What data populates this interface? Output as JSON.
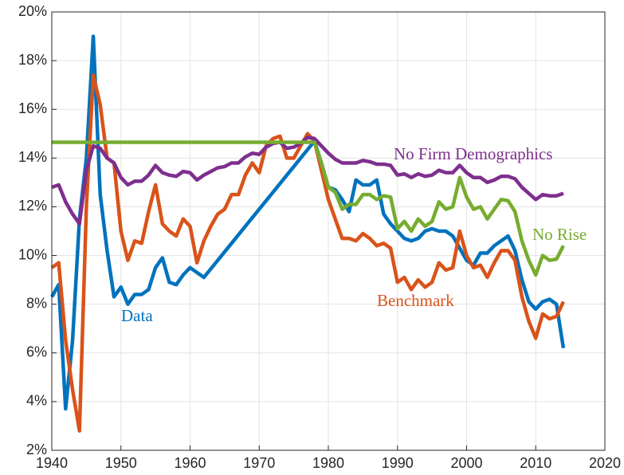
{
  "chart_data": {
    "type": "line",
    "x": [
      1940,
      1941,
      1942,
      1943,
      1944,
      1945,
      1946,
      1947,
      1948,
      1949,
      1950,
      1951,
      1952,
      1953,
      1954,
      1955,
      1956,
      1957,
      1958,
      1959,
      1960,
      1961,
      1962,
      1963,
      1964,
      1965,
      1966,
      1967,
      1968,
      1969,
      1970,
      1971,
      1972,
      1973,
      1974,
      1975,
      1976,
      1977,
      1978,
      1979,
      1980,
      1981,
      1982,
      1983,
      1984,
      1985,
      1986,
      1987,
      1988,
      1989,
      1990,
      1991,
      1992,
      1993,
      1994,
      1995,
      1996,
      1997,
      1998,
      1999,
      2000,
      2001,
      2002,
      2003,
      2004,
      2005,
      2006,
      2007,
      2008,
      2009,
      2010,
      2011,
      2012,
      2013,
      2014
    ],
    "series": [
      {
        "name": "Data",
        "color": "#0072BD",
        "values": [
          8.3,
          8.8,
          3.7,
          6.5,
          11.5,
          14,
          19,
          12.5,
          10.2,
          8.3,
          8.7,
          8.0,
          8.4,
          8.4,
          8.6,
          9.5,
          9.9,
          8.9,
          8.8,
          9.2,
          9.5,
          9.3,
          9.1,
          9.45,
          9.8,
          10.15,
          10.5,
          10.85,
          11.2,
          11.55,
          11.9,
          12.25,
          12.6,
          12.95,
          13.3,
          13.65,
          14.0,
          14.35,
          14.7,
          13.8,
          12.8,
          12.7,
          12.3,
          11.8,
          13.1,
          12.9,
          12.9,
          13.1,
          11.7,
          11.3,
          11.0,
          10.7,
          10.6,
          10.7,
          11.0,
          11.1,
          11.0,
          11.0,
          10.8,
          10.3,
          9.8,
          9.6,
          10.1,
          10.1,
          10.4,
          10.6,
          10.8,
          10.2,
          9.0,
          8.1,
          7.8,
          8.1,
          8.2,
          8.0,
          6.2
        ]
      },
      {
        "name": "Benchmark",
        "color": "#D95319",
        "values": [
          9.5,
          9.7,
          6.5,
          4.5,
          2.8,
          12,
          17.4,
          16.2,
          14.0,
          13.8,
          11.0,
          9.8,
          10.6,
          10.5,
          11.8,
          12.9,
          11.3,
          11.0,
          10.8,
          11.5,
          11.2,
          9.7,
          10.6,
          11.2,
          11.7,
          11.9,
          12.5,
          12.5,
          13.3,
          13.8,
          13.4,
          14.5,
          14.8,
          14.9,
          14.0,
          14.0,
          14.5,
          15.0,
          14.7,
          13.5,
          12.3,
          11.5,
          10.7,
          10.7,
          10.6,
          10.9,
          10.7,
          10.4,
          10.5,
          10.3,
          8.9,
          9.1,
          8.6,
          9.0,
          8.7,
          8.9,
          9.7,
          9.4,
          9.5,
          11.0,
          10.0,
          9.5,
          9.6,
          9.1,
          9.7,
          10.2,
          10.2,
          9.8,
          8.3,
          7.3,
          6.6,
          7.6,
          7.4,
          7.5,
          8.1
        ]
      },
      {
        "name": "No Firm Demographics",
        "color": "#7E2F8E",
        "values": [
          12.8,
          12.9,
          12.2,
          11.7,
          11.3,
          13.5,
          14.5,
          14.4,
          14.0,
          13.8,
          13.2,
          12.9,
          13.05,
          13.05,
          13.3,
          13.7,
          13.4,
          13.3,
          13.25,
          13.45,
          13.4,
          13.1,
          13.3,
          13.45,
          13.6,
          13.65,
          13.8,
          13.8,
          14.05,
          14.2,
          14.15,
          14.45,
          14.6,
          14.65,
          14.4,
          14.45,
          14.6,
          14.85,
          14.8,
          14.5,
          14.2,
          13.95,
          13.8,
          13.8,
          13.8,
          13.9,
          13.85,
          13.75,
          13.75,
          13.7,
          13.3,
          13.35,
          13.2,
          13.35,
          13.25,
          13.3,
          13.5,
          13.4,
          13.4,
          13.7,
          13.4,
          13.2,
          13.2,
          13.0,
          13.1,
          13.25,
          13.25,
          13.15,
          12.8,
          12.55,
          12.3,
          12.5,
          12.45,
          12.45,
          12.55
        ]
      },
      {
        "name": "No Rise",
        "color": "#77AC30",
        "values": [
          14.65,
          14.65,
          14.65,
          14.65,
          14.65,
          14.65,
          14.65,
          14.65,
          14.65,
          14.65,
          14.65,
          14.65,
          14.65,
          14.65,
          14.65,
          14.65,
          14.65,
          14.65,
          14.65,
          14.65,
          14.65,
          14.65,
          14.65,
          14.65,
          14.65,
          14.65,
          14.65,
          14.65,
          14.65,
          14.65,
          14.65,
          14.65,
          14.65,
          14.65,
          14.65,
          14.65,
          14.65,
          14.65,
          14.65,
          13.8,
          12.8,
          12.6,
          11.9,
          12.1,
          12.1,
          12.5,
          12.5,
          12.3,
          12.45,
          12.4,
          11.1,
          11.4,
          11.0,
          11.5,
          11.2,
          11.4,
          12.2,
          11.9,
          12.0,
          13.2,
          12.4,
          11.9,
          12.0,
          11.5,
          11.9,
          12.3,
          12.25,
          11.8,
          10.6,
          9.8,
          9.2,
          10.0,
          9.8,
          9.85,
          10.4
        ]
      }
    ],
    "xlim": [
      1940,
      2020
    ],
    "xticks": [
      1940,
      1950,
      1960,
      1970,
      1980,
      1990,
      2000,
      2010,
      2020
    ],
    "ylim": [
      2,
      20
    ],
    "yticks": [
      {
        "value": 2,
        "label": "2%"
      },
      {
        "value": 4,
        "label": "4%"
      },
      {
        "value": 6,
        "label": "6%"
      },
      {
        "value": 8,
        "label": "8%"
      },
      {
        "value": 10,
        "label": "10%"
      },
      {
        "value": 12,
        "label": "12%"
      },
      {
        "value": 14,
        "label": "14%"
      },
      {
        "value": 16,
        "label": "16%"
      },
      {
        "value": 18,
        "label": "18%"
      },
      {
        "value": 20,
        "label": "20%"
      }
    ],
    "grid": true
  }
}
